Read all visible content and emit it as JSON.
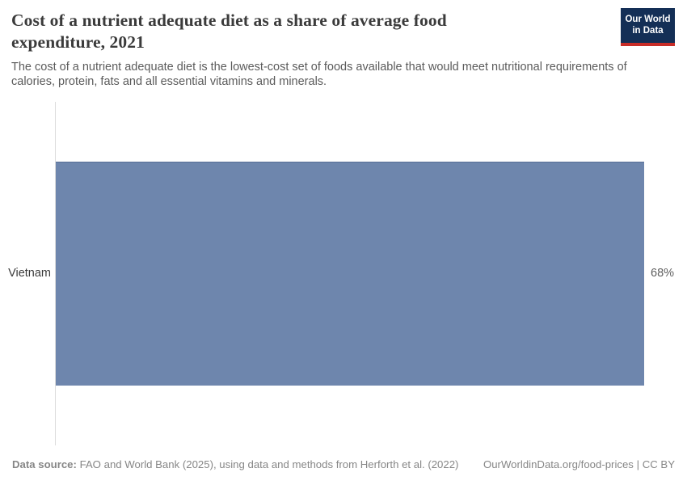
{
  "header": {
    "title": "Cost of a nutrient adequate diet as a share of average food expenditure, 2021",
    "subtitle": "The cost of a nutrient adequate diet is the lowest-cost set of foods available that would meet nutritional requirements of calories, protein, fats and all essential vitamins and minerals.",
    "logo": {
      "line1": "Our World",
      "line2": "in Data"
    }
  },
  "chart_data": {
    "type": "bar",
    "orientation": "horizontal",
    "title": "Cost of a nutrient adequate diet as a share of average food expenditure, 2021",
    "categories": [
      "Vietnam"
    ],
    "values": [
      68
    ],
    "value_labels": [
      "68%"
    ],
    "unit": "%",
    "xlim": [
      0,
      68
    ],
    "grid": false,
    "legend": false,
    "axis_ticks_visible": false
  },
  "footer": {
    "source_label": "Data source:",
    "source_text": "FAO and World Bank (2025), using data and methods from Herforth et al. (2022)",
    "link_text": "OurWorldinData.org/food-prices",
    "separator": "|",
    "license": "CC BY"
  },
  "colors": {
    "bar": "#6e86ad",
    "logo-bg": "#142f56",
    "logo-accent": "#c82d28",
    "axis": "#dcdcdc",
    "title": "#3b3b3b",
    "subtitle": "#5b5b5b",
    "footer": "#878787"
  }
}
